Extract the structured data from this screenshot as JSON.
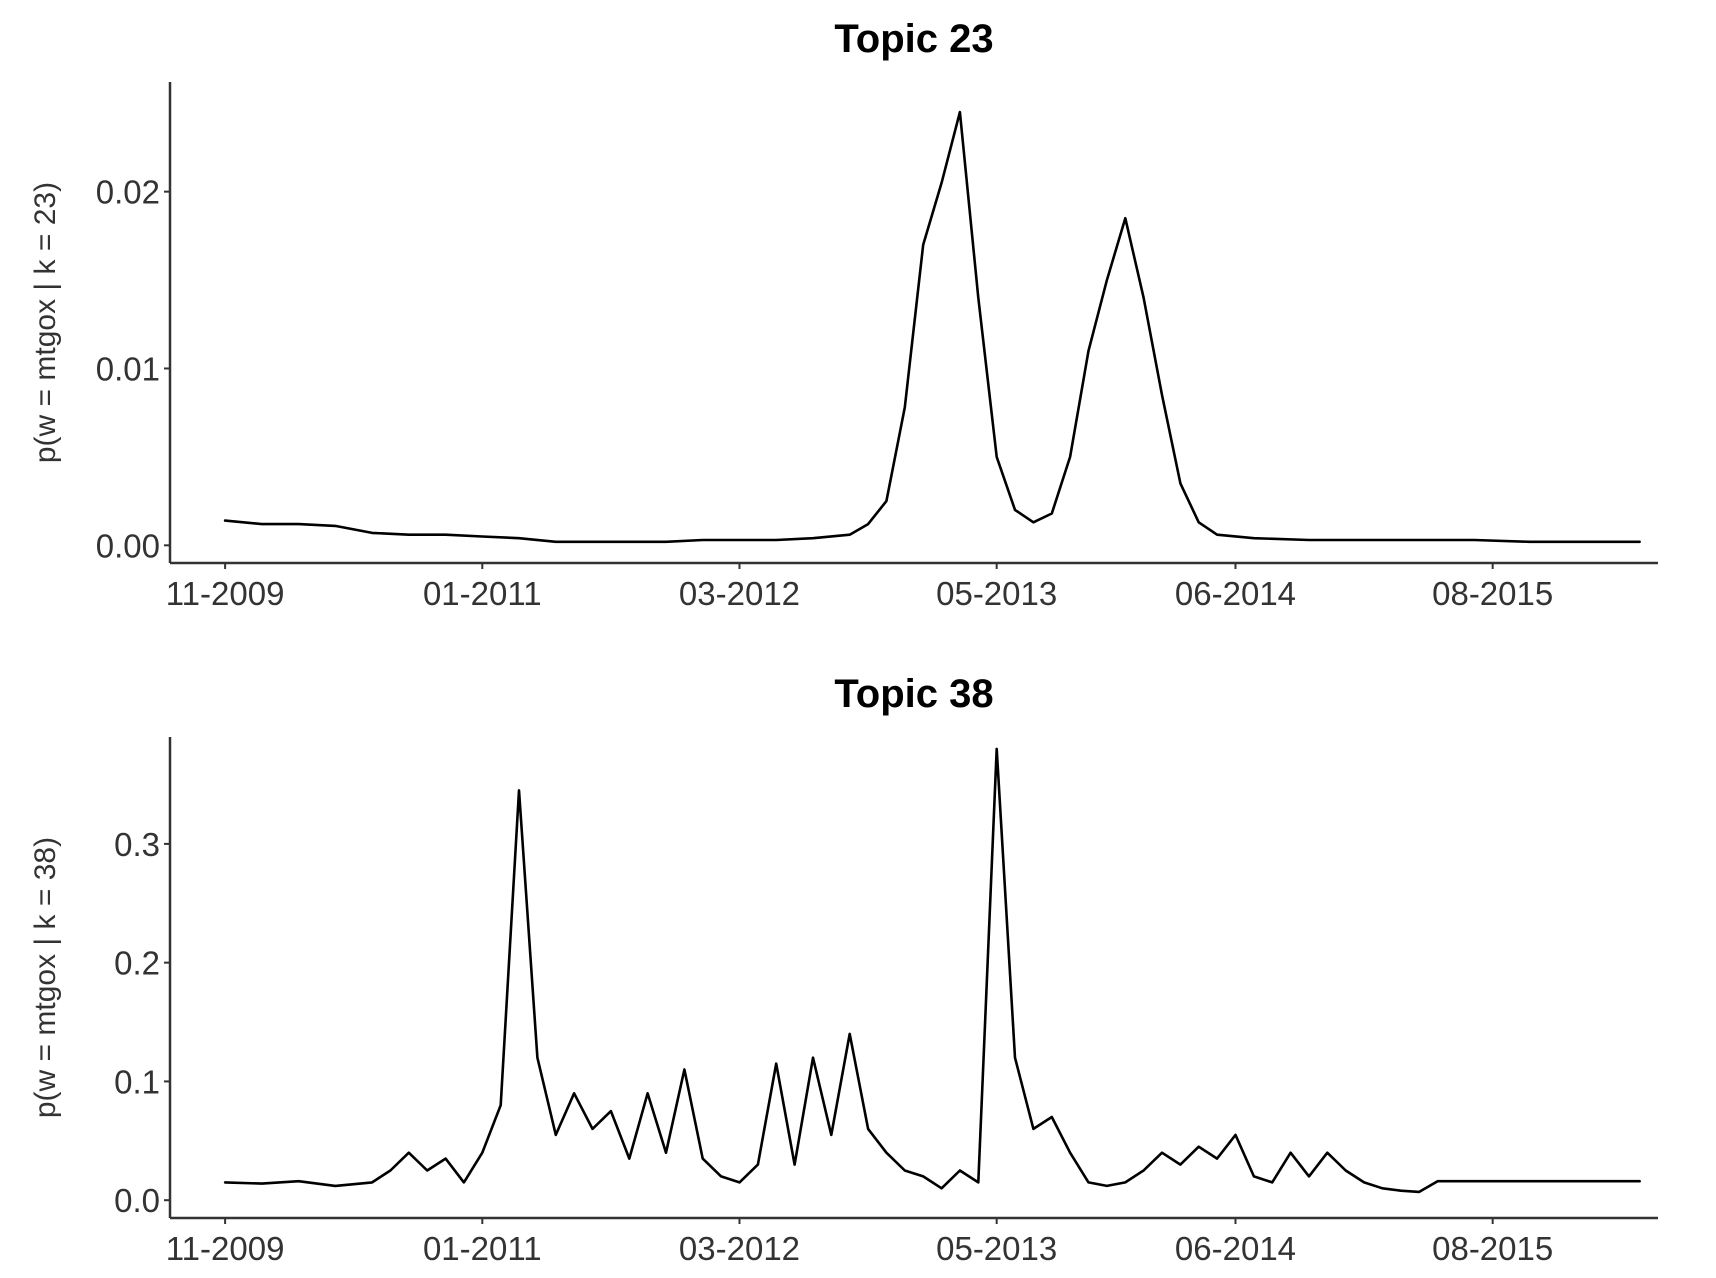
{
  "chart_data": [
    {
      "type": "line",
      "title": "Topic 23",
      "xlabel": "",
      "ylabel": "p(w = mtgox | k = 23)",
      "x_tick_labels": [
        "11-2009",
        "01-2011",
        "03-2012",
        "05-2013",
        "06-2014",
        "08-2015"
      ],
      "y_tick_labels": [
        "0.00",
        "0.01",
        "0.02"
      ],
      "y_ticks": [
        0,
        0.01,
        0.02
      ],
      "ylim": [
        -0.001,
        0.0262
      ],
      "xlim": [
        "2009-08",
        "2016-05"
      ],
      "grid": false,
      "series": [
        {
          "color": "#000000",
          "x": [
            "2009-11",
            "2010-01",
            "2010-03",
            "2010-05",
            "2010-07",
            "2010-09",
            "2010-11",
            "2011-01",
            "2011-03",
            "2011-05",
            "2011-07",
            "2011-09",
            "2011-11",
            "2012-01",
            "2012-03",
            "2012-05",
            "2012-07",
            "2012-09",
            "2012-10",
            "2012-11",
            "2012-12",
            "2013-01",
            "2013-02",
            "2013-03",
            "2013-04",
            "2013-05",
            "2013-06",
            "2013-07",
            "2013-08",
            "2013-09",
            "2013-10",
            "2013-11",
            "2013-12",
            "2014-01",
            "2014-02",
            "2014-03",
            "2014-04",
            "2014-05",
            "2014-07",
            "2014-10",
            "2015-01",
            "2015-04",
            "2015-07",
            "2015-10",
            "2016-01",
            "2016-04"
          ],
          "y": [
            0.0014,
            0.0012,
            0.0012,
            0.0011,
            0.0007,
            0.0006,
            0.0006,
            0.0005,
            0.0004,
            0.0002,
            0.0002,
            0.0002,
            0.0002,
            0.0003,
            0.0003,
            0.0003,
            0.0004,
            0.0006,
            0.0012,
            0.0025,
            0.0078,
            0.017,
            0.0205,
            0.0245,
            0.014,
            0.005,
            0.002,
            0.0013,
            0.0018,
            0.005,
            0.011,
            0.015,
            0.0185,
            0.014,
            0.0085,
            0.0035,
            0.0013,
            0.0006,
            0.0004,
            0.0003,
            0.0003,
            0.0003,
            0.0003,
            0.0002,
            0.0002,
            0.0002
          ]
        }
      ]
    },
    {
      "type": "line",
      "title": "Topic 38",
      "xlabel": "",
      "ylabel": "p(w = mtgox | k = 38)",
      "x_tick_labels": [
        "11-2009",
        "01-2011",
        "03-2012",
        "05-2013",
        "06-2014",
        "08-2015"
      ],
      "y_tick_labels": [
        "0.0",
        "0.1",
        "0.2",
        "0.3"
      ],
      "y_ticks": [
        0,
        0.1,
        0.2,
        0.3
      ],
      "ylim": [
        -0.015,
        0.39
      ],
      "xlim": [
        "2009-08",
        "2016-05"
      ],
      "grid": false,
      "series": [
        {
          "color": "#000000",
          "x": [
            "2009-11",
            "2010-01",
            "2010-03",
            "2010-05",
            "2010-07",
            "2010-08",
            "2010-09",
            "2010-10",
            "2010-11",
            "2010-12",
            "2011-01",
            "2011-02",
            "2011-03",
            "2011-04",
            "2011-05",
            "2011-06",
            "2011-07",
            "2011-08",
            "2011-09",
            "2011-10",
            "2011-11",
            "2011-12",
            "2012-01",
            "2012-02",
            "2012-03",
            "2012-04",
            "2012-05",
            "2012-06",
            "2012-07",
            "2012-08",
            "2012-09",
            "2012-10",
            "2012-11",
            "2012-12",
            "2013-01",
            "2013-02",
            "2013-03",
            "2013-04",
            "2013-05",
            "2013-06",
            "2013-07",
            "2013-08",
            "2013-09",
            "2013-10",
            "2013-11",
            "2013-12",
            "2014-01",
            "2014-02",
            "2014-03",
            "2014-04",
            "2014-05",
            "2014-06",
            "2014-07",
            "2014-08",
            "2014-09",
            "2014-10",
            "2014-11",
            "2014-12",
            "2015-01",
            "2015-02",
            "2015-03",
            "2015-04",
            "2015-05",
            "2015-06",
            "2015-07",
            "2015-08",
            "2015-09",
            "2015-10",
            "2015-11",
            "2015-12",
            "2016-01",
            "2016-02",
            "2016-03",
            "2016-04"
          ],
          "y": [
            0.015,
            0.014,
            0.016,
            0.012,
            0.015,
            0.025,
            0.04,
            0.025,
            0.035,
            0.015,
            0.04,
            0.08,
            0.345,
            0.12,
            0.055,
            0.09,
            0.06,
            0.075,
            0.035,
            0.09,
            0.04,
            0.11,
            0.035,
            0.02,
            0.015,
            0.03,
            0.115,
            0.03,
            0.12,
            0.055,
            0.14,
            0.06,
            0.04,
            0.025,
            0.02,
            0.01,
            0.025,
            0.015,
            0.38,
            0.12,
            0.06,
            0.07,
            0.04,
            0.015,
            0.012,
            0.015,
            0.025,
            0.04,
            0.03,
            0.045,
            0.035,
            0.055,
            0.02,
            0.015,
            0.04,
            0.02,
            0.04,
            0.025,
            0.015,
            0.01,
            0.008,
            0.007,
            0.016,
            0.016,
            0.016,
            0.016,
            0.016,
            0.016,
            0.016,
            0.016,
            0.016,
            0.016,
            0.016,
            0.016
          ]
        }
      ]
    }
  ]
}
